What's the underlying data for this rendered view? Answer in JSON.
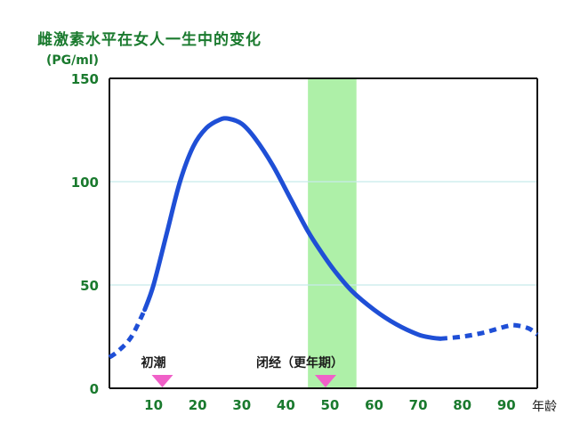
{
  "chart_data": {
    "type": "line",
    "title": "雌激素水平在女人一生中的变化",
    "ylabel": "(PG/ml)",
    "xlabel": "年龄",
    "xlim": [
      0,
      97
    ],
    "ylim": [
      0,
      150
    ],
    "x_ticks": [
      10,
      20,
      30,
      40,
      50,
      60,
      70,
      80,
      90
    ],
    "y_ticks": [
      0,
      50,
      100,
      150
    ],
    "grid": true,
    "series": [
      {
        "color": "#1f4fd6",
        "solid": [
          [
            8,
            38
          ],
          [
            10,
            50
          ],
          [
            13,
            75
          ],
          [
            16,
            100
          ],
          [
            19,
            117
          ],
          [
            22,
            126
          ],
          [
            25,
            130
          ],
          [
            27,
            130.5
          ],
          [
            30,
            128
          ],
          [
            33,
            121
          ],
          [
            37,
            108
          ],
          [
            41,
            92
          ],
          [
            45,
            76
          ],
          [
            48,
            66
          ],
          [
            51,
            57
          ],
          [
            55,
            47
          ],
          [
            60,
            38
          ],
          [
            65,
            31
          ],
          [
            70,
            26
          ],
          [
            73,
            24.5
          ],
          [
            75,
            24
          ]
        ],
        "dashed_start": [
          [
            0,
            15
          ],
          [
            2,
            18
          ],
          [
            5,
            25
          ],
          [
            8,
            38
          ]
        ],
        "dashed_end": [
          [
            75,
            24
          ],
          [
            80,
            25
          ],
          [
            85,
            27
          ],
          [
            90,
            30
          ],
          [
            92,
            30.5
          ],
          [
            95,
            29
          ],
          [
            97,
            26
          ]
        ]
      }
    ],
    "highlight_band": {
      "from": 45,
      "to": 56,
      "color": "#aef0a8"
    },
    "annotations": [
      {
        "label": "初潮",
        "x": 12
      },
      {
        "label": "闭经（更年期）",
        "x": 49
      }
    ],
    "marker_color": "#f060c8"
  }
}
